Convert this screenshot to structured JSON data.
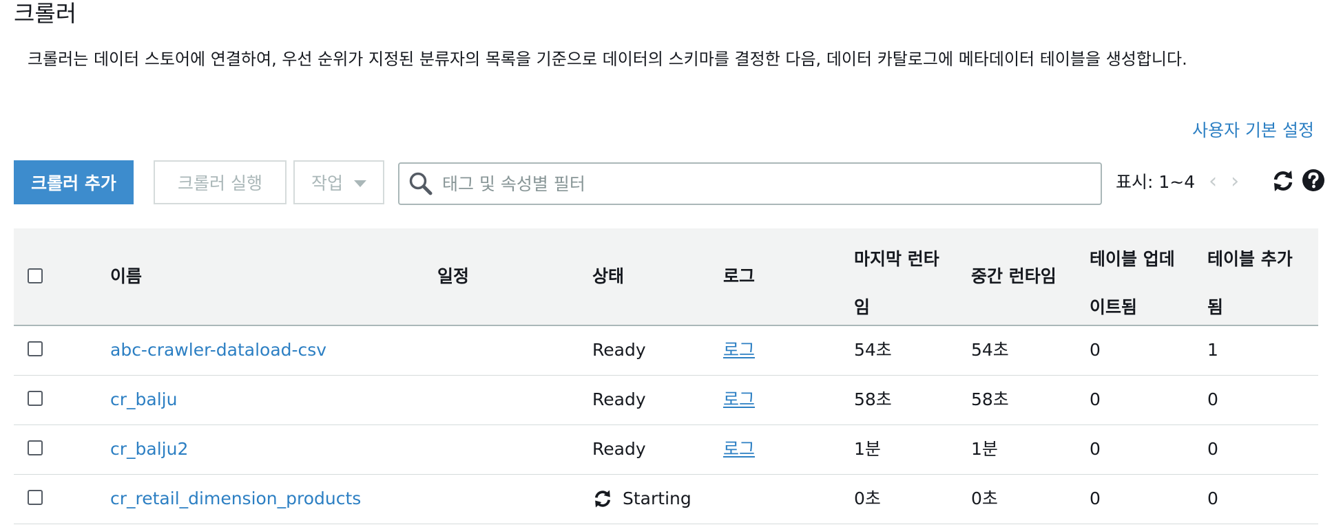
{
  "page": {
    "title": "크롤러",
    "description": "크롤러는 데이터 스토어에 연결하여, 우선 순위가 지정된 분류자의 목록을 기준으로 데이터의 스키마를 결정한 다음, 데이터 카탈로그에 메타데이터 테이블을 생성합니다.",
    "preferences_link": "사용자 기본 설정"
  },
  "toolbar": {
    "add_button": "크롤러 추가",
    "run_button": "크롤러 실행",
    "actions_button": "작업",
    "search_placeholder": "태그 및 속성별 필터",
    "pagination": "표시: 1~4",
    "prev_icon": "chevron-left-icon",
    "next_icon": "chevron-right-icon",
    "refresh_icon": "refresh-icon",
    "help_icon": "help-icon"
  },
  "table": {
    "columns": {
      "name": "이름",
      "schedule": "일정",
      "status": "상태",
      "logs": "로그",
      "last_runtime": "마지막 런타임",
      "median_runtime": "중간 런타임",
      "tables_updated": "테이블 업데이트됨",
      "tables_added": "테이블 추가됨"
    },
    "rows": [
      {
        "name": "abc-crawler-dataload-csv",
        "schedule": "",
        "status": "Ready",
        "logs": "로그",
        "last_runtime": "54초",
        "median_runtime": "54초",
        "tables_updated": "0",
        "tables_added": "1"
      },
      {
        "name": "cr_balju",
        "schedule": "",
        "status": "Ready",
        "logs": "로그",
        "last_runtime": "58초",
        "median_runtime": "58초",
        "tables_updated": "0",
        "tables_added": "0"
      },
      {
        "name": "cr_balju2",
        "schedule": "",
        "status": "Ready",
        "logs": "로그",
        "last_runtime": "1분",
        "median_runtime": "1분",
        "tables_updated": "0",
        "tables_added": "0"
      },
      {
        "name": "cr_retail_dimension_products",
        "schedule": "",
        "status": "Starting",
        "logs": "",
        "last_runtime": "0초",
        "median_runtime": "0초",
        "tables_updated": "0",
        "tables_added": "0"
      }
    ]
  },
  "colors": {
    "primary": "#3d8ccd",
    "link": "#2c7fc3",
    "header_bg": "#f2f3f3",
    "disabled_text": "#aab7b8"
  }
}
